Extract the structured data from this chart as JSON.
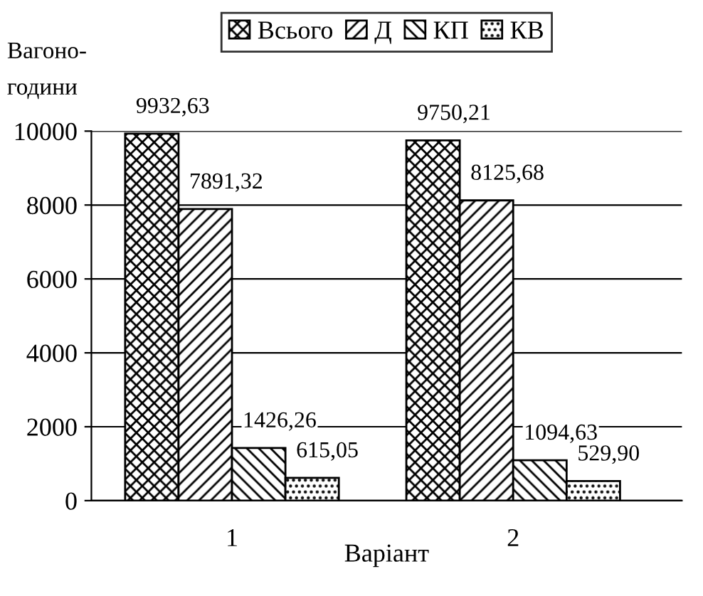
{
  "chart_data": {
    "type": "bar",
    "categories": [
      "1",
      "2"
    ],
    "series": [
      {
        "name": "Всього",
        "color": "#000000",
        "values": [
          9932.63,
          9750.21
        ],
        "value_labels": [
          "9932,63",
          "9750,21"
        ]
      },
      {
        "name": "Д",
        "color": "#000000",
        "values": [
          7891.32,
          8125.68
        ],
        "value_labels": [
          "7891,32",
          "8125,68"
        ]
      },
      {
        "name": "КП",
        "color": "#000000",
        "values": [
          1426.26,
          1094.63
        ],
        "value_labels": [
          "1426,26",
          "1094,63"
        ]
      },
      {
        "name": "КВ",
        "color": "#000000",
        "values": [
          615.05,
          529.9
        ],
        "value_labels": [
          "615,05",
          "529,90"
        ]
      }
    ],
    "xlabel": "Варіант",
    "ylabel": "Вагоно-\nгодини",
    "ylim": [
      0,
      10000
    ],
    "yticks": [
      0,
      2000,
      4000,
      6000,
      8000,
      10000
    ],
    "grid": "y",
    "legend": "top"
  }
}
